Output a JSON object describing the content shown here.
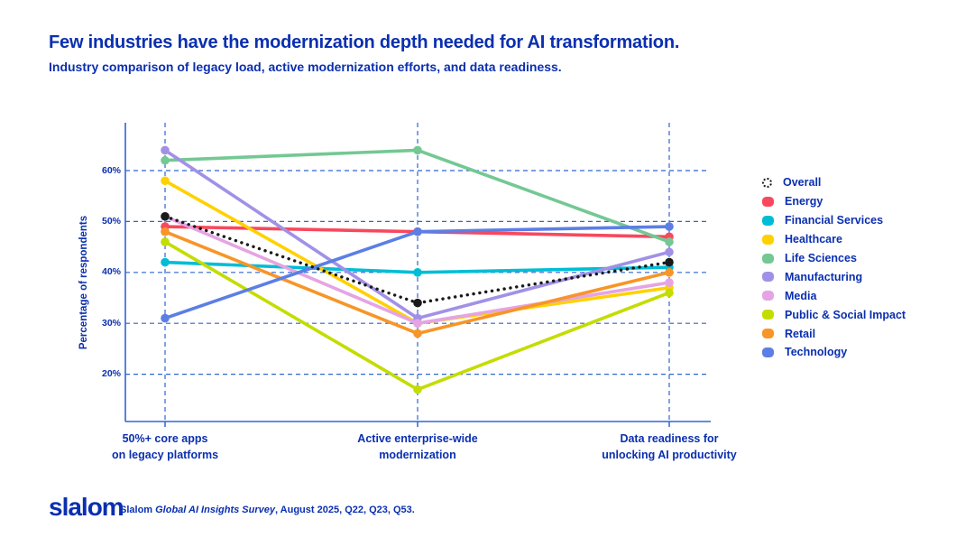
{
  "header": {
    "title": "Few industries have the modernization depth needed for AI transformation.",
    "subtitle": "Industry comparison of legacy load, active modernization efforts, and data readiness."
  },
  "colors": {
    "text_blue": "#0A2FB0",
    "grid_blue": "#2E66D0",
    "background": "#FFFFFF"
  },
  "chart_data": {
    "type": "line",
    "title": "",
    "xlabel": "",
    "ylabel": "Percentage of respondents",
    "categories": [
      "50%+ core apps\non legacy platforms",
      "Active enterprise-wide\nmodernization",
      "Data readiness for\nunlocking AI productivity"
    ],
    "y_ticks": [
      20,
      30,
      40,
      50,
      60
    ],
    "y_tick_suffix": "%",
    "ylim": [
      10.5,
      69.5
    ],
    "grid": true,
    "legend_position": "right",
    "series": [
      {
        "name": "Overall",
        "color": "#1A1A1A",
        "style": "dotted",
        "values": [
          51,
          34,
          42
        ]
      },
      {
        "name": "Energy",
        "color": "#F8485E",
        "style": "solid",
        "values": [
          49,
          48,
          47
        ]
      },
      {
        "name": "Financial Services",
        "color": "#00BDD6",
        "style": "solid",
        "values": [
          42,
          40,
          41
        ]
      },
      {
        "name": "Healthcare",
        "color": "#FFD100",
        "style": "solid",
        "values": [
          58,
          30,
          37
        ]
      },
      {
        "name": "Life Sciences",
        "color": "#74C893",
        "style": "solid",
        "values": [
          62,
          64,
          46
        ]
      },
      {
        "name": "Manufacturing",
        "color": "#A191E6",
        "style": "solid",
        "values": [
          64,
          31,
          44
        ]
      },
      {
        "name": "Media",
        "color": "#E5A4E3",
        "style": "solid",
        "values": [
          51,
          30,
          38
        ]
      },
      {
        "name": "Public & Social Impact",
        "color": "#C4DC00",
        "style": "solid",
        "values": [
          46,
          17,
          36
        ]
      },
      {
        "name": "Retail",
        "color": "#F79528",
        "style": "solid",
        "values": [
          48,
          28,
          40
        ]
      },
      {
        "name": "Technology",
        "color": "#5C7EE5",
        "style": "solid",
        "values": [
          31,
          48,
          49
        ]
      }
    ]
  },
  "footer": {
    "logo_text": "slalom",
    "source_prefix": "Slalom ",
    "source_italic": "Global AI Insights Survey",
    "source_suffix": ", August 2025, Q22, Q23, Q53."
  }
}
